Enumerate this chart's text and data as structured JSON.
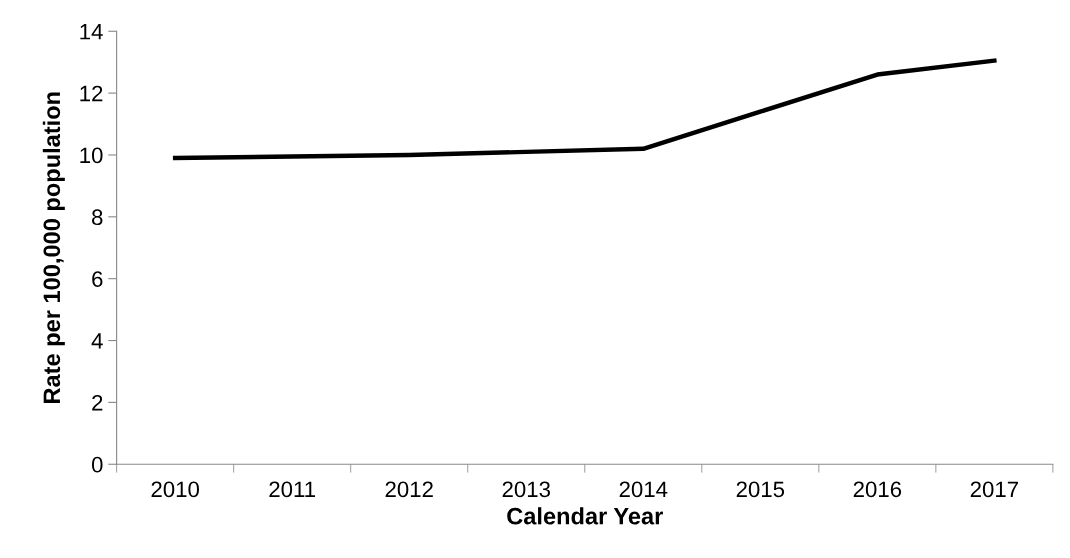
{
  "chart_data": {
    "type": "line",
    "xlabel": "Calendar Year",
    "ylabel": "Rate per 100,000 population",
    "categories": [
      "2010",
      "2011",
      "2012",
      "2013",
      "2014",
      "2015",
      "2016",
      "2017"
    ],
    "series": [
      {
        "color": "#000000",
        "values": [
          9.9,
          9.95,
          10.0,
          10.1,
          10.2,
          11.4,
          12.6,
          13.05
        ]
      }
    ],
    "ylim": [
      0,
      14
    ],
    "yticks": [
      0,
      2,
      4,
      6,
      8,
      10,
      12,
      14
    ],
    "grid": false,
    "marker": "none",
    "line_style": "solid"
  }
}
